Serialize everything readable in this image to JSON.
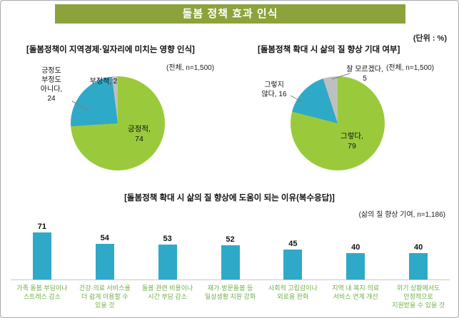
{
  "title": "돌봄 정책 효과 인식",
  "unit_label": "(단위 : %)",
  "colors": {
    "banner": "#8CA23B",
    "pie_positive": "#9ACA3C",
    "pie_neutral": "#2FA9C8",
    "pie_negative": "#BFBFBF",
    "bar": "#2FA9C8",
    "category_label": "#70AD47"
  },
  "chart_data": [
    {
      "type": "pie",
      "title": "[돌봄정책이 지역경제·일자리에 미치는 영향 인식]",
      "subtitle": "(전체, n=1,500)",
      "slices": [
        {
          "label": "긍정적",
          "value": 74,
          "color": "#9ACA3C",
          "display": "긍정적,\n74"
        },
        {
          "label": "긍정도 부정도 아니다",
          "value": 24,
          "color": "#2FA9C8",
          "display": "긍정도\n부정도\n아니다,\n24"
        },
        {
          "label": "부정적",
          "value": 2,
          "color": "#BFBFBF",
          "display": "부정적, 2"
        }
      ]
    },
    {
      "type": "pie",
      "title": "[돌봄정책 확대 시 삶의 질 향상 기대 여부]",
      "subtitle": "(전체, n=1,500)",
      "slices": [
        {
          "label": "그렇다",
          "value": 79,
          "color": "#9ACA3C",
          "display": "그렇다,\n79"
        },
        {
          "label": "그렇지 않다",
          "value": 16,
          "color": "#2FA9C8",
          "display": "그렇지\n않다, 16"
        },
        {
          "label": "잘 모르겠다",
          "value": 5,
          "color": "#BFBFBF",
          "display": "잘 모르겠다,\n5"
        }
      ]
    },
    {
      "type": "bar",
      "title": "[돌봄정책 확대 시 삶의 질 향상에 도움이 되는 이유(복수응답)]",
      "subtitle": "(삶의 질 향상 기여, n=1,186)",
      "bar_color": "#2FA9C8",
      "ylim": [
        0,
        80
      ],
      "categories": [
        "가족 돌봄 부담이나 스트레스 감소",
        "건강·의료 서비스를 더 쉽게 이용할 수 있을 것",
        "돌봄 관련 비용이나 시간 부담 감소",
        "재가·방문돌봄 등 일상생활 지원 강화",
        "사회적 고립감이나 외로움 완화",
        "지역 내 복지·의료 서비스 연계 개선",
        "위기 상황에서도 안정적으로 지원받을 수 있을 것"
      ],
      "categories_display": [
        "가족 돌봄 부담이나\n스트레스 감소",
        "건강·의료 서비스를\n더 쉽게 이용할 수\n있을 것",
        "돌봄 관련 비용이나\n시간 부담 감소",
        "재가·방문돌봄 등\n일상생활 지원 강화",
        "사회적 고립감이나\n외로움 완화",
        "지역 내 복지·의료\n서비스 연계 개선",
        "위기 상황에서도\n안정적으로\n지원받을 수 있을 것"
      ],
      "values": [
        71,
        54,
        53,
        52,
        45,
        40,
        40
      ]
    }
  ]
}
